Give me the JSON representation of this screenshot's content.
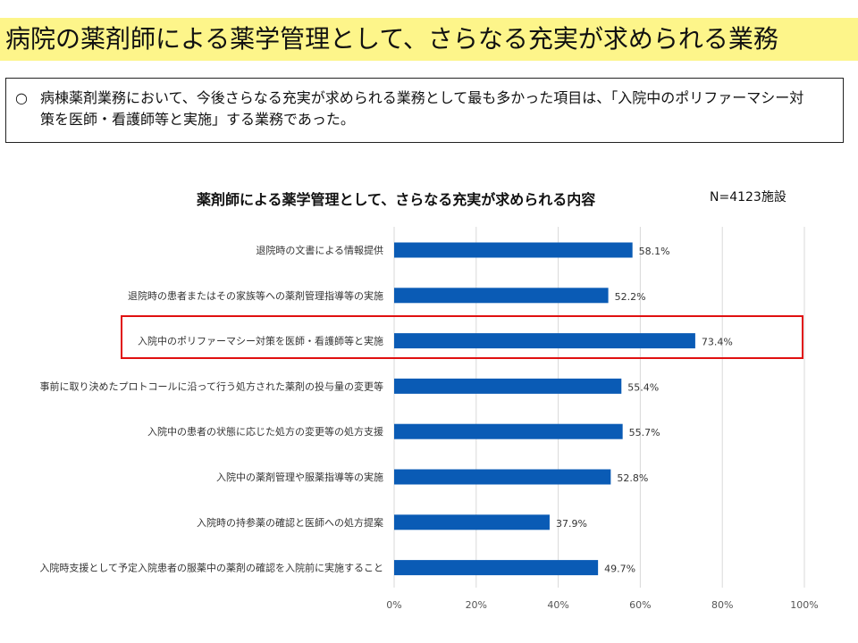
{
  "header": {
    "title": "病院の薬剤師による薬学管理として、さらなる充実が求められる業務"
  },
  "summary": {
    "bullet": "○",
    "text": "病棟薬剤業務において、今後さらなる充実が求められる業務として最も多かった項目は、「入院中のポリファーマシー対策を医師・看護師等と実施」する業務であった。"
  },
  "chart_data": {
    "type": "bar",
    "orientation": "horizontal",
    "title": "薬剤師による薬学管理として、さらなる充実が求められる内容",
    "note": "N=4123施設",
    "categories": [
      "退院時の文書による情報提供",
      "退院時の患者またはその家族等への薬剤管理指導等の実施",
      "入院中のポリファーマシー対策を医師・看護師等と実施",
      "事前に取り決めたプロトコールに沿って行う処方された薬剤の投与量の変更等",
      "入院中の患者の状態に応じた処方の変更等の処方支援",
      "入院中の薬剤管理や服薬指導等の実施",
      "入院時の持参薬の確認と医師への処方提案",
      "入院時支援として予定入院患者の服薬中の薬剤の確認を入院前に実施すること"
    ],
    "values": [
      58.1,
      52.2,
      73.4,
      55.4,
      55.7,
      52.8,
      37.9,
      49.7
    ],
    "value_labels": [
      "58.1%",
      "52.2%",
      "73.4%",
      "55.4%",
      "55.7%",
      "52.8%",
      "37.9%",
      "49.7%"
    ],
    "xlim": [
      0,
      100
    ],
    "xticks": [
      "0%",
      "20%",
      "40%",
      "60%",
      "80%",
      "100%"
    ],
    "grid": true,
    "highlighted_category": "入院中のポリファーマシー対策を医師・看護師等と実施",
    "bar_color": "#0a5bb5",
    "highlight_color": "#e01010"
  }
}
